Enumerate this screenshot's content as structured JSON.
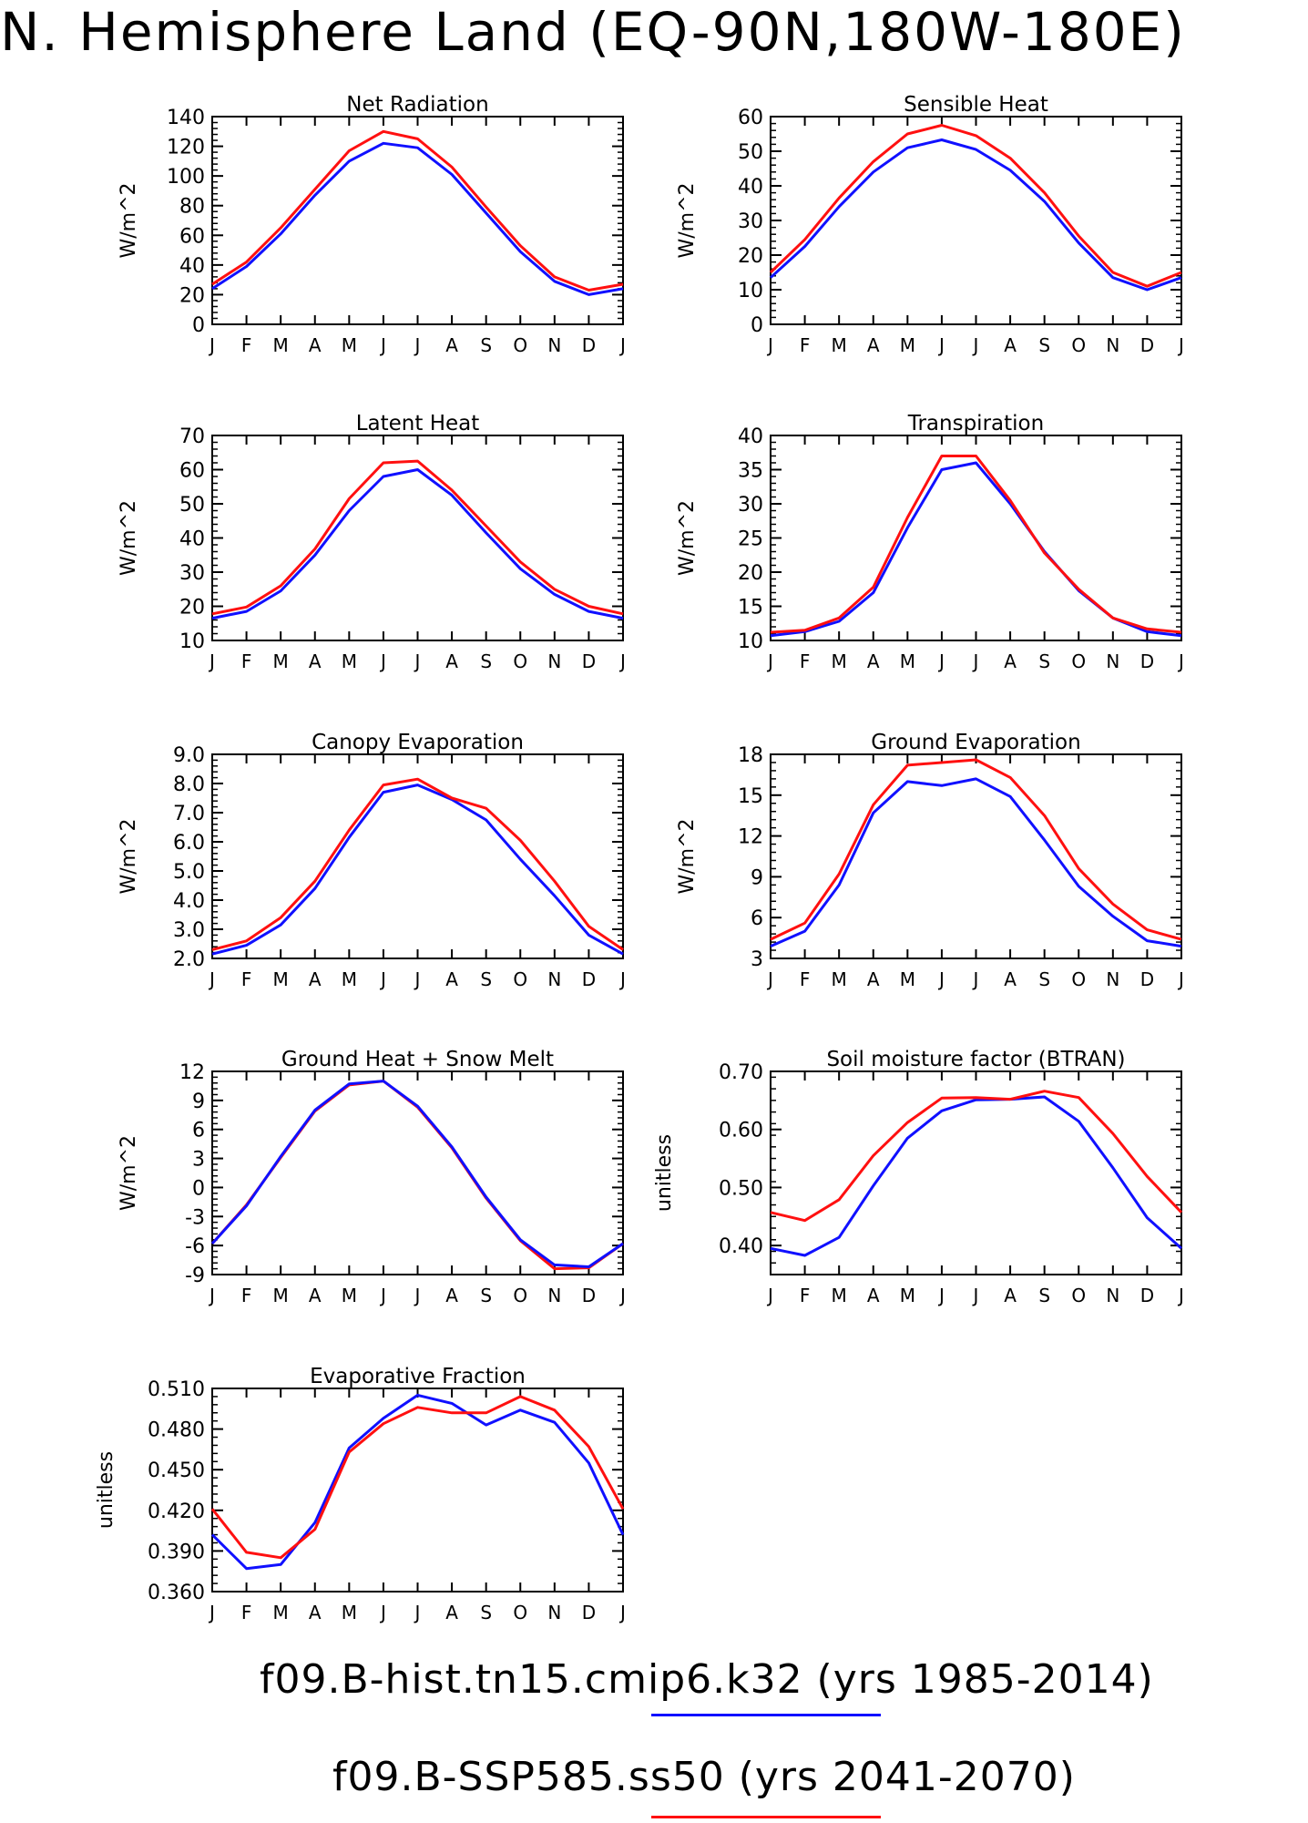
{
  "title": "N. Hemisphere Land (EQ-90N,180W-180E)",
  "months": [
    "J",
    "F",
    "M",
    "A",
    "M",
    "J",
    "J",
    "A",
    "S",
    "O",
    "N",
    "D",
    "J"
  ],
  "legend": [
    {
      "label": "f09.B-hist.tn15.cmip6.k32 (yrs 1985-2014)",
      "color": "#1010ff"
    },
    {
      "label": "f09.B-SSP585.ss50 (yrs 2041-2070)",
      "color": "#ff1010"
    }
  ],
  "chart_data": [
    {
      "type": "line",
      "title": "Net Radiation",
      "ylabel": "W/m^2",
      "ylim": [
        0,
        140
      ],
      "yticks": [
        0,
        20,
        40,
        60,
        80,
        100,
        120,
        140
      ],
      "ytick_labels": [
        "0",
        "20",
        "40",
        "60",
        "80",
        "100",
        "120",
        "140"
      ],
      "categories": [
        "J",
        "F",
        "M",
        "A",
        "M",
        "J",
        "J",
        "A",
        "S",
        "O",
        "N",
        "D",
        "J"
      ],
      "series": [
        {
          "color": "#1010ff",
          "values": [
            24,
            39,
            61,
            87,
            110,
            122,
            119,
            101,
            75,
            49,
            29,
            20,
            24
          ]
        },
        {
          "color": "#ff1010",
          "values": [
            27,
            42,
            65,
            91,
            117,
            130,
            125,
            106,
            79,
            53,
            32,
            23,
            27
          ]
        }
      ]
    },
    {
      "type": "line",
      "title": "Sensible Heat",
      "ylabel": "W/m^2",
      "ylim": [
        0,
        60
      ],
      "yticks": [
        0,
        10,
        20,
        30,
        40,
        50,
        60
      ],
      "ytick_labels": [
        "0",
        "10",
        "20",
        "30",
        "40",
        "50",
        "60"
      ],
      "categories": [
        "J",
        "F",
        "M",
        "A",
        "M",
        "J",
        "J",
        "A",
        "S",
        "O",
        "N",
        "D",
        "J"
      ],
      "series": [
        {
          "color": "#1010ff",
          "values": [
            13.5,
            22.5,
            34,
            44,
            51,
            53.3,
            50.5,
            44.5,
            35.5,
            23.5,
            13.5,
            10,
            13.5
          ]
        },
        {
          "color": "#ff1010",
          "values": [
            15,
            24.5,
            36.5,
            47,
            55,
            57.5,
            54.5,
            48,
            38,
            25.5,
            15,
            11,
            15
          ]
        }
      ]
    },
    {
      "type": "line",
      "title": "Latent Heat",
      "ylabel": "W/m^2",
      "ylim": [
        10,
        70
      ],
      "yticks": [
        10,
        20,
        30,
        40,
        50,
        60,
        70
      ],
      "ytick_labels": [
        "10",
        "20",
        "30",
        "40",
        "50",
        "60",
        "70"
      ],
      "categories": [
        "J",
        "F",
        "M",
        "A",
        "M",
        "J",
        "J",
        "A",
        "S",
        "O",
        "N",
        "D",
        "J"
      ],
      "series": [
        {
          "color": "#1010ff",
          "values": [
            16.5,
            18.5,
            24.5,
            35,
            48,
            58,
            60,
            52.5,
            41.5,
            31,
            23.5,
            18.5,
            16.5
          ]
        },
        {
          "color": "#ff1010",
          "values": [
            17.8,
            19.8,
            26,
            36.8,
            51.5,
            62,
            62.5,
            54,
            43.5,
            33,
            25,
            20,
            17.8
          ]
        }
      ]
    },
    {
      "type": "line",
      "title": "Transpiration",
      "ylabel": "W/m^2",
      "ylim": [
        10,
        40
      ],
      "yticks": [
        10,
        15,
        20,
        25,
        30,
        35,
        40
      ],
      "ytick_labels": [
        "10",
        "15",
        "20",
        "25",
        "30",
        "35",
        "40"
      ],
      "categories": [
        "J",
        "F",
        "M",
        "A",
        "M",
        "J",
        "J",
        "A",
        "S",
        "O",
        "N",
        "D",
        "J"
      ],
      "series": [
        {
          "color": "#1010ff",
          "values": [
            10.7,
            11.3,
            12.8,
            17,
            26.5,
            35,
            36,
            30,
            23,
            17.3,
            13.3,
            11.3,
            10.7
          ]
        },
        {
          "color": "#ff1010",
          "values": [
            11.2,
            11.5,
            13.3,
            17.8,
            28,
            37,
            37,
            30.5,
            22.8,
            17.5,
            13.3,
            11.7,
            11.2
          ]
        }
      ]
    },
    {
      "type": "line",
      "title": "Canopy Evaporation",
      "ylabel": "W/m^2",
      "ylim": [
        2.0,
        9.0
      ],
      "yticks": [
        2,
        3,
        4,
        5,
        6,
        7,
        8,
        9
      ],
      "ytick_labels": [
        "2.0",
        "3.0",
        "4.0",
        "5.0",
        "6.0",
        "7.0",
        "8.0",
        "9.0"
      ],
      "categories": [
        "J",
        "F",
        "M",
        "A",
        "M",
        "J",
        "J",
        "A",
        "S",
        "O",
        "N",
        "D",
        "J"
      ],
      "series": [
        {
          "color": "#1010ff",
          "values": [
            2.15,
            2.45,
            3.15,
            4.4,
            6.15,
            7.7,
            7.95,
            7.45,
            6.75,
            5.4,
            4.15,
            2.8,
            2.15
          ]
        },
        {
          "color": "#ff1010",
          "values": [
            2.3,
            2.6,
            3.4,
            4.65,
            6.4,
            7.95,
            8.15,
            7.5,
            7.15,
            6.05,
            4.65,
            3.1,
            2.3
          ]
        }
      ]
    },
    {
      "type": "line",
      "title": "Ground Evaporation",
      "ylabel": "W/m^2",
      "ylim": [
        3,
        18
      ],
      "yticks": [
        3,
        6,
        9,
        12,
        15,
        18
      ],
      "ytick_labels": [
        "3",
        "6",
        "9",
        "12",
        "15",
        "18"
      ],
      "categories": [
        "J",
        "F",
        "M",
        "A",
        "M",
        "J",
        "J",
        "A",
        "S",
        "O",
        "N",
        "D",
        "J"
      ],
      "series": [
        {
          "color": "#1010ff",
          "values": [
            3.9,
            5,
            8.4,
            13.7,
            16,
            15.7,
            16.2,
            14.9,
            11.7,
            8.3,
            6.1,
            4.3,
            3.9
          ]
        },
        {
          "color": "#ff1010",
          "values": [
            4.4,
            5.6,
            9.2,
            14.3,
            17.2,
            17.4,
            17.6,
            16.3,
            13.5,
            9.6,
            7,
            5.1,
            4.4
          ]
        }
      ]
    },
    {
      "type": "line",
      "title": "Ground Heat + Snow Melt",
      "ylabel": "W/m^2",
      "ylim": [
        -9,
        12
      ],
      "yticks": [
        -9,
        -6,
        -3,
        0,
        3,
        6,
        9,
        12
      ],
      "ytick_labels": [
        "-9",
        "-6",
        "-3",
        "0",
        "3",
        "6",
        "9",
        "12"
      ],
      "categories": [
        "J",
        "F",
        "M",
        "A",
        "M",
        "J",
        "J",
        "A",
        "S",
        "O",
        "N",
        "D",
        "J"
      ],
      "series": [
        {
          "color": "#ff1010",
          "values": [
            -5.8,
            -1.8,
            3.1,
            7.9,
            10.6,
            11,
            8.3,
            4.1,
            -1.1,
            -5.5,
            -8.4,
            -8.3,
            -5.8
          ]
        },
        {
          "color": "#1010ff",
          "values": [
            -5.8,
            -1.9,
            3.2,
            8.0,
            10.7,
            11,
            8.4,
            4.2,
            -1.0,
            -5.4,
            -8.0,
            -8.2,
            -5.8
          ]
        }
      ]
    },
    {
      "type": "line",
      "title": "Soil moisture factor (BTRAN)",
      "ylabel": "unitless",
      "ylim": [
        0.35,
        0.7
      ],
      "yticks": [
        0.4,
        0.5,
        0.6,
        0.7
      ],
      "ytick_labels": [
        "0.40",
        "0.50",
        "0.60",
        "0.70"
      ],
      "categories": [
        "J",
        "F",
        "M",
        "A",
        "M",
        "J",
        "J",
        "A",
        "S",
        "O",
        "N",
        "D",
        "J"
      ],
      "series": [
        {
          "color": "#1010ff",
          "values": [
            0.395,
            0.383,
            0.414,
            0.503,
            0.585,
            0.632,
            0.651,
            0.652,
            0.656,
            0.614,
            0.534,
            0.448,
            0.395
          ]
        },
        {
          "color": "#ff1010",
          "values": [
            0.457,
            0.443,
            0.479,
            0.555,
            0.612,
            0.654,
            0.655,
            0.652,
            0.666,
            0.655,
            0.593,
            0.519,
            0.457
          ]
        }
      ]
    },
    {
      "type": "line",
      "title": "Evaporative Fraction",
      "ylabel": "unitless",
      "ylim": [
        0.36,
        0.51
      ],
      "yticks": [
        0.36,
        0.39,
        0.42,
        0.45,
        0.48,
        0.51
      ],
      "ytick_labels": [
        "0.360",
        "0.390",
        "0.420",
        "0.450",
        "0.480",
        "0.510"
      ],
      "categories": [
        "J",
        "F",
        "M",
        "A",
        "M",
        "J",
        "J",
        "A",
        "S",
        "O",
        "N",
        "D",
        "J"
      ],
      "series": [
        {
          "color": "#1010ff",
          "values": [
            0.402,
            0.377,
            0.38,
            0.411,
            0.466,
            0.488,
            0.505,
            0.499,
            0.483,
            0.494,
            0.485,
            0.455,
            0.402
          ]
        },
        {
          "color": "#ff1010",
          "values": [
            0.421,
            0.389,
            0.385,
            0.406,
            0.463,
            0.484,
            0.496,
            0.492,
            0.492,
            0.504,
            0.494,
            0.467,
            0.421
          ]
        }
      ]
    }
  ]
}
